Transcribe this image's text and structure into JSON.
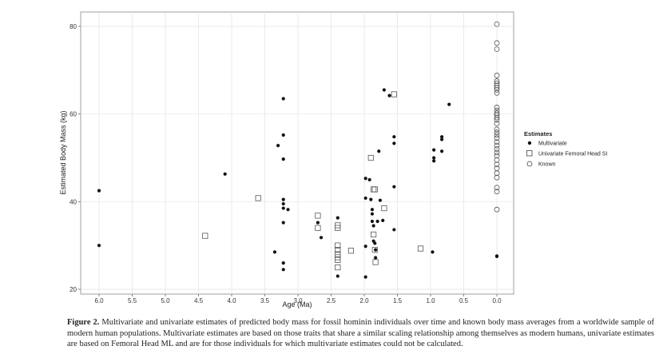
{
  "chart_data": {
    "type": "scatter",
    "xlabel": "Age (Ma)",
    "ylabel": "Estimated Body Mass (kg)",
    "x_reversed": true,
    "xlim": [
      6.0,
      0.0
    ],
    "ylim": [
      20,
      80
    ],
    "xticks": [
      6.0,
      5.5,
      5.0,
      4.5,
      4.0,
      3.5,
      3.0,
      2.5,
      2.0,
      1.5,
      1.0,
      0.5,
      0.0
    ],
    "xtick_labels": [
      "6.0",
      "5.5",
      "5.0",
      "4.5",
      "4.0",
      "3.5",
      "3.0",
      "2.5",
      "2.0",
      "1.5",
      "1.0",
      "0.5",
      "0.0"
    ],
    "yticks": [
      20,
      40,
      60,
      80
    ],
    "ytick_labels": [
      "20",
      "40",
      "60",
      "80"
    ],
    "grid": true,
    "legend": {
      "title": "Estimates",
      "position": "right"
    },
    "series": [
      {
        "name": "Multivariate",
        "marker": "filled-circle",
        "points": [
          [
            6.0,
            42.5
          ],
          [
            6.0,
            30.0
          ],
          [
            4.1,
            46.3
          ],
          [
            3.35,
            28.5
          ],
          [
            3.3,
            52.8
          ],
          [
            3.22,
            63.5
          ],
          [
            3.22,
            55.2
          ],
          [
            3.22,
            49.7
          ],
          [
            3.22,
            40.5
          ],
          [
            3.22,
            39.5
          ],
          [
            3.22,
            38.5
          ],
          [
            3.22,
            35.2
          ],
          [
            3.22,
            26.0
          ],
          [
            3.22,
            24.5
          ],
          [
            3.15,
            38.2
          ],
          [
            2.7,
            35.2
          ],
          [
            2.65,
            31.8
          ],
          [
            2.4,
            36.3
          ],
          [
            2.4,
            23.0
          ],
          [
            1.98,
            45.3
          ],
          [
            1.98,
            40.8
          ],
          [
            1.98,
            29.8
          ],
          [
            1.98,
            22.8
          ],
          [
            1.92,
            45.0
          ],
          [
            1.9,
            40.5
          ],
          [
            1.88,
            38.2
          ],
          [
            1.88,
            37.2
          ],
          [
            1.88,
            35.5
          ],
          [
            1.86,
            34.5
          ],
          [
            1.86,
            31.0
          ],
          [
            1.84,
            30.5
          ],
          [
            1.83,
            29.0
          ],
          [
            1.83,
            27.2
          ],
          [
            1.8,
            35.5
          ],
          [
            1.78,
            51.5
          ],
          [
            1.76,
            40.3
          ],
          [
            1.72,
            35.7
          ],
          [
            1.7,
            65.5
          ],
          [
            1.62,
            64.2
          ],
          [
            1.55,
            54.8
          ],
          [
            1.55,
            53.3
          ],
          [
            1.55,
            43.4
          ],
          [
            1.55,
            33.6
          ],
          [
            0.97,
            28.5
          ],
          [
            0.95,
            51.8
          ],
          [
            0.95,
            50.0
          ],
          [
            0.95,
            49.3
          ],
          [
            0.83,
            54.8
          ],
          [
            0.83,
            54.2
          ],
          [
            0.83,
            51.5
          ],
          [
            0.72,
            62.2
          ],
          [
            0.0,
            27.5
          ],
          [
            0.0,
            27.6
          ]
        ]
      },
      {
        "name": "Univariate Femoral Head SI",
        "marker": "open-square",
        "points": [
          [
            4.4,
            32.2
          ],
          [
            3.6,
            40.8
          ],
          [
            2.7,
            36.8
          ],
          [
            2.7,
            34.0
          ],
          [
            2.4,
            34.0
          ],
          [
            2.4,
            34.6
          ],
          [
            2.4,
            30.0
          ],
          [
            2.4,
            29.0
          ],
          [
            2.4,
            28.0
          ],
          [
            2.4,
            27.3
          ],
          [
            2.4,
            26.7
          ],
          [
            2.4,
            25.0
          ],
          [
            2.2,
            28.8
          ],
          [
            1.9,
            50.0
          ],
          [
            1.86,
            42.8
          ],
          [
            1.84,
            42.8
          ],
          [
            1.86,
            32.5
          ],
          [
            1.84,
            29.0
          ],
          [
            1.83,
            26.2
          ],
          [
            1.7,
            38.5
          ],
          [
            1.55,
            64.5
          ],
          [
            1.15,
            29.3
          ]
        ]
      },
      {
        "name": "Known",
        "marker": "open-circle",
        "points": [
          [
            0.0,
            80.5
          ],
          [
            0.0,
            76.2
          ],
          [
            0.0,
            74.8
          ],
          [
            0.0,
            68.8
          ],
          [
            0.0,
            67.5
          ],
          [
            0.0,
            67.0
          ],
          [
            0.0,
            66.5
          ],
          [
            0.0,
            66.0
          ],
          [
            0.0,
            65.5
          ],
          [
            0.0,
            64.8
          ],
          [
            0.0,
            61.5
          ],
          [
            0.0,
            60.8
          ],
          [
            0.0,
            60.2
          ],
          [
            0.0,
            59.8
          ],
          [
            0.0,
            59.2
          ],
          [
            0.0,
            58.7
          ],
          [
            0.0,
            57.8
          ],
          [
            0.0,
            56.5
          ],
          [
            0.0,
            55.8
          ],
          [
            0.0,
            55.2
          ],
          [
            0.0,
            54.5
          ],
          [
            0.0,
            53.6
          ],
          [
            0.0,
            52.8
          ],
          [
            0.0,
            52.0
          ],
          [
            0.0,
            51.2
          ],
          [
            0.0,
            50.5
          ],
          [
            0.0,
            49.5
          ],
          [
            0.0,
            48.5
          ],
          [
            0.0,
            47.6
          ],
          [
            0.0,
            46.5
          ],
          [
            0.0,
            45.5
          ],
          [
            0.0,
            43.2
          ],
          [
            0.0,
            42.3
          ],
          [
            0.0,
            38.2
          ]
        ]
      }
    ]
  },
  "caption": {
    "label": "Figure 2.",
    "text": " Multivariate and univariate estimates of predicted body mass for fossil hominin individuals over time and known body mass averages from a worldwide sample of modern human populations. Multivariate estimates are based on those traits that share a similar scaling relationship among themselves as modern humans, univariate estimates are based on Femoral Head ML and are for those individuals for which multivariate estimates could not be calculated."
  }
}
